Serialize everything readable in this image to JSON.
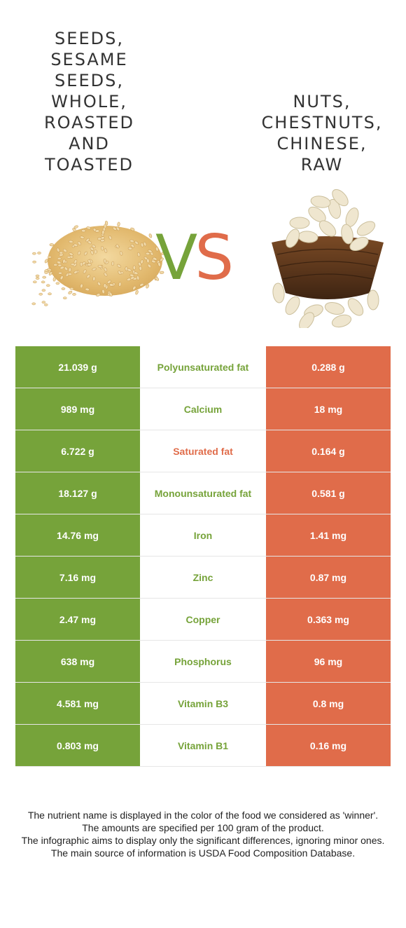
{
  "foods": {
    "left": {
      "name": "Seeds, sesame seeds, whole, roasted and toasted",
      "color": "#76a33a",
      "image": "sesame-seeds-pile"
    },
    "right": {
      "name": "Nuts, chestnuts, chinese, raw",
      "color": "#e06c4a",
      "image": "nut-basket"
    }
  },
  "vs": {
    "v": "V",
    "s": "S"
  },
  "rows": [
    {
      "left": "21.039 g",
      "nutrient": "Polyunsaturated fat",
      "right": "0.288 g",
      "winner": "left"
    },
    {
      "left": "989 mg",
      "nutrient": "Calcium",
      "right": "18 mg",
      "winner": "left"
    },
    {
      "left": "6.722 g",
      "nutrient": "Saturated fat",
      "right": "0.164 g",
      "winner": "right"
    },
    {
      "left": "18.127 g",
      "nutrient": "Monounsaturated fat",
      "right": "0.581 g",
      "winner": "left"
    },
    {
      "left": "14.76 mg",
      "nutrient": "Iron",
      "right": "1.41 mg",
      "winner": "left"
    },
    {
      "left": "7.16 mg",
      "nutrient": "Zinc",
      "right": "0.87 mg",
      "winner": "left"
    },
    {
      "left": "2.47 mg",
      "nutrient": "Copper",
      "right": "0.363 mg",
      "winner": "left"
    },
    {
      "left": "638 mg",
      "nutrient": "Phosphorus",
      "right": "96 mg",
      "winner": "left"
    },
    {
      "left": "4.581 mg",
      "nutrient": "Vitamin B3",
      "right": "0.8 mg",
      "winner": "left"
    },
    {
      "left": "0.803 mg",
      "nutrient": "Vitamin B1",
      "right": "0.16 mg",
      "winner": "left"
    }
  ],
  "notes": [
    "The nutrient name is displayed in the color of the food we considered as 'winner'.",
    "The amounts are specified per 100 gram of the product.",
    "The infographic aims to display only the significant differences, ignoring minor ones.",
    "The main source of information is USDA Food Composition Database."
  ]
}
